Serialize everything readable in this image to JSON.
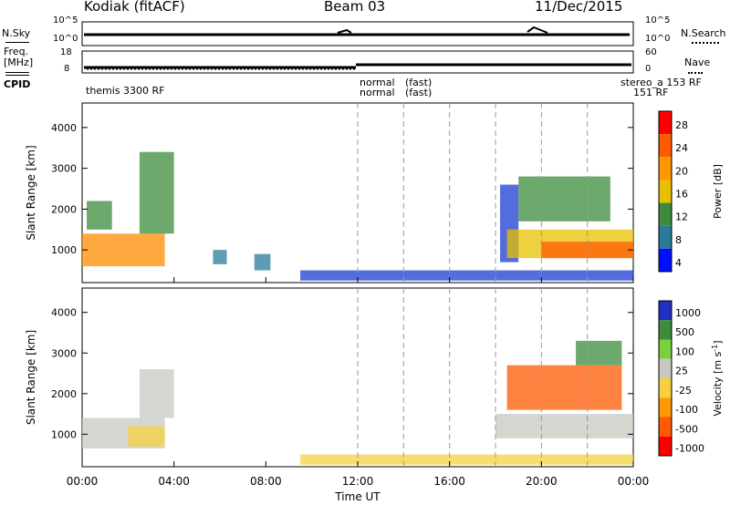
{
  "header": {
    "station": "Kodiak (fitACF)",
    "beam": "Beam 03",
    "date": "11/Dec/2015"
  },
  "top_panels": {
    "nsky_label": "N.Sky",
    "nsearch_label": "N.Search",
    "nsky_ticks": [
      "10^5",
      "10^0"
    ],
    "nsearch_ticks": [
      "10^5",
      "10^0"
    ],
    "freq_label_1": "Freq.",
    "freq_label_2": "[MHz]",
    "freq_ticks": [
      "18",
      "8"
    ],
    "nave_label": "Nave",
    "nave_ticks": [
      "60",
      "0"
    ],
    "cpid_label": "CPID",
    "cpid_entries": [
      "themis 3300 RF",
      "normal",
      "normal",
      "(fast)",
      "(fast)",
      "stereo_a 153 RF",
      "151 RF"
    ]
  },
  "chart_data": [
    {
      "type": "heatmap",
      "panel": "power",
      "ylabel": "Slant Range [km]",
      "yticks": [
        "4000",
        "3000",
        "2000",
        "1000"
      ],
      "ylim": [
        200,
        4600
      ],
      "xlim_hours": [
        0,
        24
      ],
      "colorbar_label": "Power [dB]",
      "colorbar_ticks": [
        "28",
        "24",
        "20",
        "16",
        "12",
        "8",
        "4"
      ],
      "colorbar_colors": [
        "#ff0000",
        "#ff5a00",
        "#ff9600",
        "#e8c000",
        "#3c8c3c",
        "#2a7a9a",
        "#0010ff"
      ],
      "regions": [
        {
          "t0": 0.0,
          "t1": 3.6,
          "r0": 600,
          "r1": 1400,
          "color": "#ff8c00"
        },
        {
          "t0": 0.2,
          "t1": 1.3,
          "r0": 1500,
          "r1": 2200,
          "color": "#3c8c3c"
        },
        {
          "t0": 2.5,
          "t1": 4.0,
          "r0": 1400,
          "r1": 3400,
          "color": "#3c8c3c"
        },
        {
          "t0": 5.7,
          "t1": 6.3,
          "r0": 650,
          "r1": 1000,
          "color": "#2a7a9a"
        },
        {
          "t0": 7.5,
          "t1": 8.2,
          "r0": 500,
          "r1": 900,
          "color": "#2a7a9a"
        },
        {
          "t0": 9.5,
          "t1": 24.0,
          "r0": 250,
          "r1": 500,
          "color": "#1c3cd0"
        },
        {
          "t0": 18.2,
          "t1": 19.0,
          "r0": 700,
          "r1": 2600,
          "color": "#1c3cd0"
        },
        {
          "t0": 19.0,
          "t1": 23.0,
          "r0": 1700,
          "r1": 2800,
          "color": "#3c8c3c"
        },
        {
          "t0": 18.5,
          "t1": 24.0,
          "r0": 800,
          "r1": 1500,
          "color": "#e8c000"
        },
        {
          "t0": 20.0,
          "t1": 24.0,
          "r0": 800,
          "r1": 1200,
          "color": "#ff5a00"
        }
      ]
    },
    {
      "type": "heatmap",
      "panel": "velocity",
      "ylabel": "Slant Range [km]",
      "yticks": [
        "4000",
        "3000",
        "2000",
        "1000"
      ],
      "ylim": [
        200,
        4600
      ],
      "xlabel": "Time UT",
      "xticks": [
        "00:00",
        "04:00",
        "08:00",
        "12:00",
        "16:00",
        "20:00",
        "00:00"
      ],
      "xlim_hours": [
        0,
        24
      ],
      "colorbar_label": "Velocity [m s",
      "colorbar_label_sup": "-1",
      "colorbar_label_close": "]",
      "colorbar_ticks": [
        "1000",
        "500",
        "100",
        "25",
        "-25",
        "-100",
        "-500",
        "-1000"
      ],
      "colorbar_colors": [
        "#2030c0",
        "#3c8c3c",
        "#7ad040",
        "#c8c8c0",
        "#f5d040",
        "#ff9a00",
        "#ff5a00",
        "#ff0000"
      ],
      "regions": [
        {
          "t0": 0.0,
          "t1": 3.6,
          "r0": 650,
          "r1": 1400,
          "color": "#c8c8c0"
        },
        {
          "t0": 2.0,
          "t1": 3.6,
          "r0": 700,
          "r1": 1200,
          "color": "#f5d040"
        },
        {
          "t0": 2.5,
          "t1": 4.0,
          "r0": 1400,
          "r1": 2600,
          "color": "#c8c8c0"
        },
        {
          "t0": 9.5,
          "t1": 24.0,
          "r0": 250,
          "r1": 500,
          "color": "#f5d040"
        },
        {
          "t0": 18.0,
          "t1": 24.0,
          "r0": 900,
          "r1": 1500,
          "color": "#c8c8c0"
        },
        {
          "t0": 18.5,
          "t1": 23.5,
          "r0": 1600,
          "r1": 2700,
          "color": "#ff5a00"
        },
        {
          "t0": 21.5,
          "t1": 23.5,
          "r0": 2700,
          "r1": 3300,
          "color": "#3c8c3c"
        }
      ]
    }
  ]
}
